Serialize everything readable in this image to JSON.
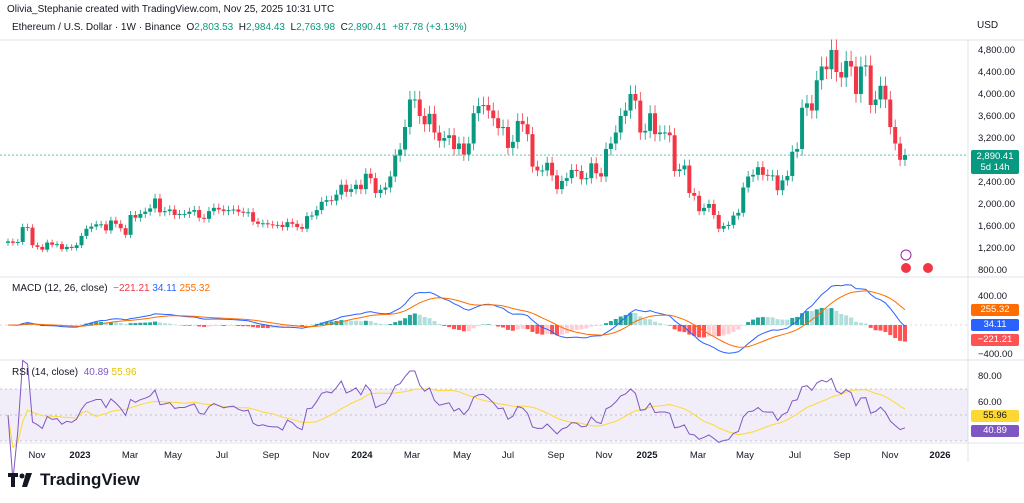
{
  "credit": "Olivia_Stephanie created with TradingView.com, Nov 25, 2025 10:31 UTC",
  "header": {
    "symbol": "Ethereum / U.S. Dollar · 1W · Binance",
    "o_label": "O",
    "o": "2,803.53",
    "h_label": "H",
    "h": "2,984.43",
    "l_label": "L",
    "l": "2,763.98",
    "c_label": "C",
    "c": "2,890.41",
    "change": "+87.78 (+3.13%)"
  },
  "currency": "USD",
  "price_tag": {
    "price": "2,890.41",
    "countdown": "5d 14h"
  },
  "macd": {
    "label": "MACD (12, 26, close)",
    "hist": "−221.21",
    "macd": "34.11",
    "signal": "255.32",
    "ticks": [
      "400.00",
      "−400.00"
    ]
  },
  "rsi": {
    "label": "RSI (14, close)",
    "rsi": "40.89",
    "ma": "55.96",
    "ticks": [
      "80.00",
      "60.00"
    ]
  },
  "brand": "TradingView",
  "colors": {
    "up": "#089981",
    "down": "#f23645",
    "macd": "#2962ff",
    "signal": "#ff6d00",
    "rsi": "#7e57c2",
    "rsi_ma": "#fdd835",
    "hist_up": "#26a69a",
    "hist_up_light": "#b2dfdb",
    "hist_down": "#ff5252",
    "hist_down_light": "#ffcdd2"
  },
  "chart_data": {
    "type": "candlestick",
    "interval": "1W",
    "yaxis_ticks": [
      800,
      1200,
      1600,
      2000,
      2400,
      3200,
      3600,
      4000,
      4400,
      4800
    ],
    "ylim": [
      800,
      4900
    ],
    "xaxis_ticks": [
      "Nov",
      "2023",
      "Mar",
      "May",
      "Jul",
      "Sep",
      "Nov",
      "2024",
      "Mar",
      "May",
      "Jul",
      "Sep",
      "Nov",
      "2025",
      "Mar",
      "May",
      "Jul",
      "Sep",
      "Nov",
      "2026"
    ],
    "closes": [
      1320,
      1295,
      1310,
      1580,
      1570,
      1250,
      1220,
      1170,
      1300,
      1260,
      1270,
      1180,
      1220,
      1200,
      1250,
      1420,
      1550,
      1590,
      1630,
      1630,
      1520,
      1700,
      1640,
      1560,
      1440,
      1800,
      1750,
      1820,
      1860,
      1920,
      2100,
      1850,
      1870,
      1900,
      1800,
      1820,
      1820,
      1860,
      1890,
      1750,
      1730,
      1870,
      1930,
      1900,
      1870,
      1890,
      1900,
      1860,
      1840,
      1850,
      1680,
      1640,
      1650,
      1630,
      1620,
      1620,
      1580,
      1670,
      1640,
      1580,
      1550,
      1780,
      1790,
      1890,
      2040,
      2070,
      2060,
      2170,
      2350,
      2220,
      2270,
      2350,
      2270,
      2550,
      2470,
      2200,
      2260,
      2300,
      2500,
      2880,
      2990,
      3400,
      3900,
      3900,
      3600,
      3450,
      3640,
      3300,
      3150,
      3200,
      3250,
      3000,
      3100,
      2900,
      3100,
      3650,
      3780,
      3800,
      3700,
      3560,
      3380,
      3400,
      3020,
      3130,
      3510,
      3450,
      3270,
      2680,
      2610,
      2610,
      2750,
      2520,
      2270,
      2420,
      2470,
      2620,
      2600,
      2450,
      2470,
      2740,
      2560,
      2500,
      3000,
      3100,
      3300,
      3600,
      3700,
      4000,
      3880,
      3300,
      3330,
      3650,
      3270,
      3300,
      3300,
      3250,
      2600,
      2630,
      2700,
      2200,
      2150,
      1870,
      1930,
      2000,
      1800,
      1550,
      1600,
      1620,
      1790,
      1840,
      2300,
      2500,
      2530,
      2670,
      2530,
      2520,
      2520,
      2250,
      2430,
      2510,
      2950,
      3000,
      3750,
      3830,
      3700,
      4250,
      4500,
      4450,
      4800,
      4400,
      4300,
      4600,
      4500,
      4000,
      4500,
      4520,
      3800,
      3900,
      4150,
      3900,
      3400,
      3100,
      2803,
      2890
    ]
  }
}
